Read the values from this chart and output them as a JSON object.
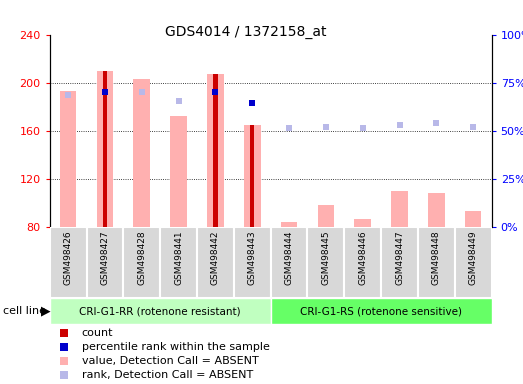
{
  "title": "GDS4014 / 1372158_at",
  "samples": [
    "GSM498426",
    "GSM498427",
    "GSM498428",
    "GSM498441",
    "GSM498442",
    "GSM498443",
    "GSM498444",
    "GSM498445",
    "GSM498446",
    "GSM498447",
    "GSM498448",
    "GSM498449"
  ],
  "group1_label": "CRI-G1-RR (rotenone resistant)",
  "group2_label": "CRI-G1-RS (rotenone sensitive)",
  "cell_line_label": "cell line",
  "n_group1": 6,
  "n_group2": 6,
  "value_bars": [
    193,
    210,
    203,
    172,
    207,
    165,
    84,
    98,
    86,
    110,
    108,
    93
  ],
  "count_bars": [
    0,
    210,
    0,
    0,
    207,
    165,
    0,
    0,
    0,
    0,
    0,
    0
  ],
  "rank_dots_y": [
    190,
    0,
    192,
    185,
    0,
    0,
    162,
    163,
    162,
    165,
    166,
    163
  ],
  "percentile_dots_y": [
    0,
    192,
    0,
    0,
    192,
    183,
    0,
    0,
    0,
    0,
    0,
    0
  ],
  "has_count": [
    false,
    true,
    false,
    false,
    true,
    true,
    false,
    false,
    false,
    false,
    false,
    false
  ],
  "has_percentile": [
    false,
    true,
    false,
    false,
    true,
    true,
    false,
    false,
    false,
    false,
    false,
    false
  ],
  "has_rank": [
    true,
    false,
    true,
    true,
    false,
    false,
    true,
    true,
    true,
    true,
    true,
    true
  ],
  "ylim_left": [
    80,
    240
  ],
  "ylim_right": [
    0,
    100
  ],
  "yticks_left": [
    80,
    120,
    160,
    200,
    240
  ],
  "yticks_right": [
    0,
    25,
    50,
    75,
    100
  ],
  "ytick_right_labels": [
    "0%",
    "25%",
    "50%",
    "75%",
    "100%"
  ],
  "count_color": "#cc0000",
  "value_color": "#ffb0b0",
  "rank_color": "#b8b8e8",
  "percentile_color": "#0000cc",
  "group1_bg": "#c0ffc0",
  "group2_bg": "#66ff66",
  "sample_bg": "#d8d8d8"
}
